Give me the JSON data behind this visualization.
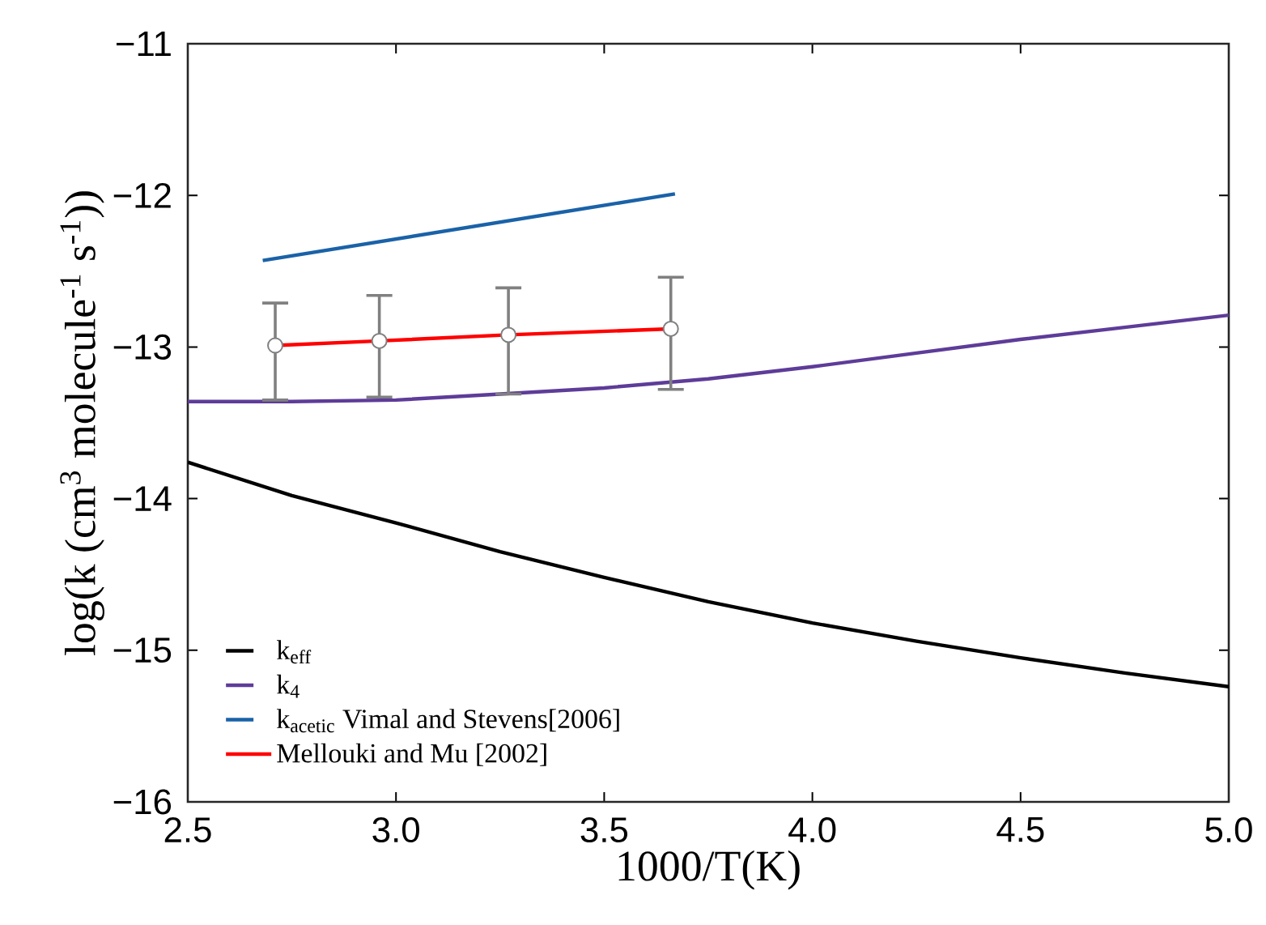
{
  "chart_data": {
    "type": "line",
    "xlabel": "1000/T(K)",
    "ylabel": "log(k (cm$^{3}$ molecule$^{-1}$ s$^{-1}$))",
    "xlim": [
      2.5,
      5.0
    ],
    "ylim": [
      -16,
      -11
    ],
    "xticks": [
      {
        "value": 2.5,
        "label": "2.5"
      },
      {
        "value": 3.0,
        "label": "3.0"
      },
      {
        "value": 3.5,
        "label": "3.5"
      },
      {
        "value": 4.0,
        "label": "4.0"
      },
      {
        "value": 4.5,
        "label": "4.5"
      },
      {
        "value": 5.0,
        "label": "5.0"
      }
    ],
    "yticks": [
      {
        "value": -16,
        "label": "−16"
      },
      {
        "value": -15,
        "label": "−15"
      },
      {
        "value": -14,
        "label": "−14"
      },
      {
        "value": -13,
        "label": "−13"
      },
      {
        "value": -12,
        "label": "−12"
      },
      {
        "value": -11,
        "label": "−11"
      }
    ],
    "grid": false,
    "legend": "bottom left",
    "series": [
      {
        "name": "k$_{eff}$",
        "color": "#000000",
        "x": [
          2.5,
          2.75,
          3.0,
          3.25,
          3.5,
          3.75,
          4.0,
          4.25,
          4.5,
          4.75,
          5.0
        ],
        "values": [
          -13.76,
          -13.98,
          -14.16,
          -14.35,
          -14.52,
          -14.68,
          -14.82,
          -14.94,
          -15.05,
          -15.15,
          -15.24
        ]
      },
      {
        "name": "k$_{4}$",
        "color": "#5e3c99",
        "x": [
          2.5,
          2.75,
          3.0,
          3.25,
          3.5,
          3.75,
          4.0,
          4.25,
          4.5,
          4.75,
          5.0
        ],
        "values": [
          -13.36,
          -13.36,
          -13.35,
          -13.31,
          -13.27,
          -13.21,
          -13.13,
          -13.04,
          -12.95,
          -12.87,
          -12.79
        ]
      },
      {
        "name": "k$_{acetic}$ Vimal and Stevens[2006]",
        "color": "#1a62a8",
        "x": [
          2.68,
          3.67
        ],
        "values": [
          -12.43,
          -11.99
        ]
      },
      {
        "name": "Mellouki and Mu [2002]",
        "color": "#ff0000",
        "marker": "circle",
        "x": [
          2.71,
          2.96,
          3.27,
          3.66
        ],
        "values": [
          -12.99,
          -12.96,
          -12.92,
          -12.88
        ],
        "errors": [
          [
            -13.35,
            -12.71
          ],
          [
            -13.33,
            -12.66
          ],
          [
            -13.31,
            -12.61
          ],
          [
            -13.28,
            -12.54
          ]
        ]
      }
    ]
  }
}
